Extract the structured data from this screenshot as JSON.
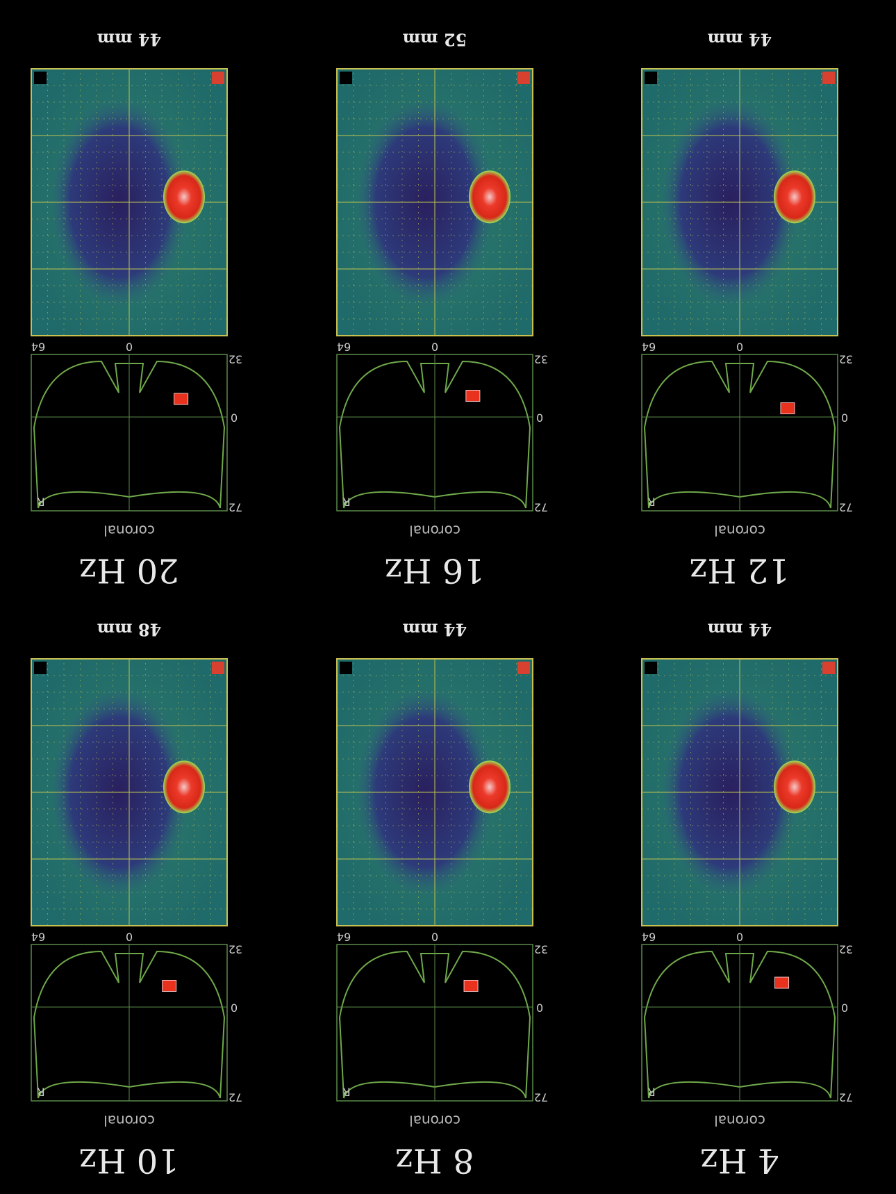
{
  "panels": [
    {
      "frequency": "4 Hz",
      "depth": "44 mm"
    },
    {
      "frequency": "8 Hz",
      "depth": "44 mm"
    },
    {
      "frequency": "10 Hz",
      "depth": "48 mm"
    },
    {
      "frequency": "12 Hz",
      "depth": "44 mm"
    },
    {
      "frequency": "16 Hz",
      "depth": "52 mm"
    },
    {
      "frequency": "20 Hz",
      "depth": "44 mm"
    }
  ],
  "view_label": "coronal",
  "axis_labels": {
    "top": "72",
    "side": "R",
    "mid": "0",
    "bottom_left": "32",
    "bottom_mid": "0",
    "bottom_right": "64"
  }
}
